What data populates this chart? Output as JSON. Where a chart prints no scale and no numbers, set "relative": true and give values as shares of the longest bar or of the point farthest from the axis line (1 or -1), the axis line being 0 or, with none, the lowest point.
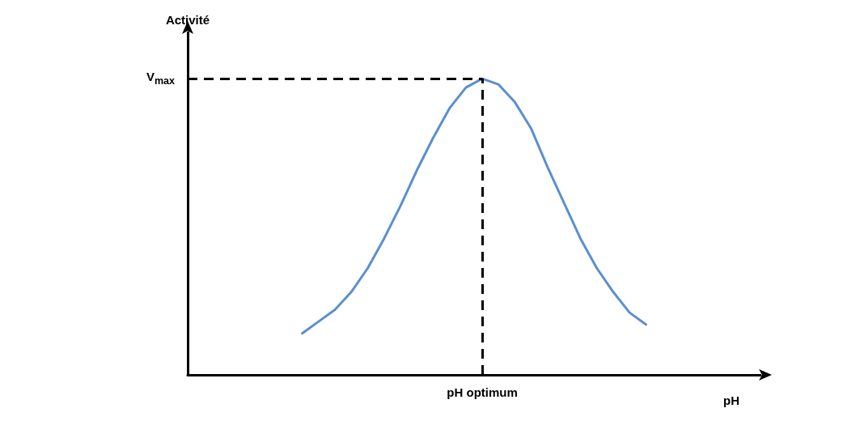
{
  "chart_data": {
    "type": "line",
    "xlabel": "pH",
    "ylabel": "Activité",
    "relative": true,
    "color": "#5b8fd0",
    "categories": [
      null,
      null,
      null,
      null,
      null,
      null,
      null,
      null,
      null,
      null,
      null,
      null,
      null,
      null,
      null,
      null,
      null,
      null,
      null,
      null,
      null,
      null,
      null,
      null,
      null,
      null,
      null,
      null,
      null,
      null,
      null,
      null,
      null,
      null,
      null,
      null
    ],
    "values": [
      null,
      null,
      null,
      null,
      null,
      null,
      null,
      0.14,
      0.18,
      0.22,
      0.28,
      0.36,
      0.46,
      0.57,
      0.69,
      0.8,
      0.9,
      0.97,
      1,
      0.98,
      0.92,
      0.83,
      0.7,
      0.58,
      0.46,
      0.36,
      0.28,
      0.21,
      0.17,
      null,
      null,
      null,
      null,
      null,
      null,
      null
    ],
    "ref_lines": [
      {
        "axis": "y",
        "value": 1,
        "label": "V$_{max}$",
        "color": "#000000",
        "line_style": "dashed"
      },
      {
        "axis": "x",
        "label": "pH optimum",
        "color": "#000000",
        "line_style": "dashed"
      }
    ],
    "grid": false,
    "marker": "none"
  }
}
